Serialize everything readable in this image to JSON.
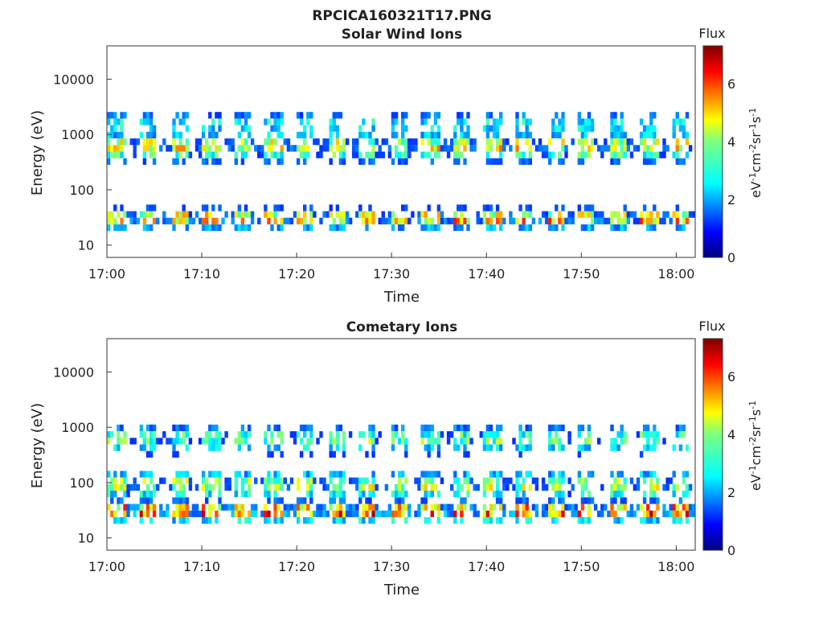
{
  "figure_title": "RPCICA160321T17.PNG",
  "chart_data": [
    {
      "type": "heatmap",
      "title": "Solar Wind Ions",
      "xlabel": "Time",
      "ylabel": "Energy (eV)",
      "x_tick_labels": [
        "17:00",
        "17:10",
        "17:20",
        "17:30",
        "17:40",
        "17:50",
        "18:00"
      ],
      "y_tick_labels": [
        "10",
        "100",
        "1000",
        "10000"
      ],
      "y_scale": "log",
      "ylim": [
        6,
        40000
      ],
      "xlim_minutes": [
        0,
        62
      ],
      "colorbar": {
        "title": "Flux",
        "label": "eV-1cm-2sr-1s-1",
        "ticks": [
          "0",
          "2",
          "4",
          "6"
        ],
        "range": [
          0,
          7.3
        ],
        "colormap": "jet"
      },
      "bands": [
        {
          "energy_center": 600,
          "flux_peak": 5.0,
          "description": "main solar wind band"
        },
        {
          "energy_center": 30,
          "flux_peak": 5.8,
          "description": "low-energy bursts"
        },
        {
          "energy_center": 1500,
          "flux_peak": 3.0,
          "description": "sparse upper band"
        }
      ]
    },
    {
      "type": "heatmap",
      "title": "Cometary Ions",
      "xlabel": "Time",
      "ylabel": "Energy (eV)",
      "x_tick_labels": [
        "17:00",
        "17:10",
        "17:20",
        "17:30",
        "17:40",
        "17:50",
        "18:00"
      ],
      "y_tick_labels": [
        "10",
        "100",
        "1000",
        "10000"
      ],
      "y_scale": "log",
      "ylim": [
        6,
        40000
      ],
      "xlim_minutes": [
        0,
        62
      ],
      "colorbar": {
        "title": "Flux",
        "label": "eV-1cm-2sr-1s-1",
        "ticks": [
          "0",
          "2",
          "4",
          "6"
        ],
        "range": [
          0,
          7.3
        ],
        "colormap": "jet"
      },
      "bands": [
        {
          "energy_center": 30,
          "flux_peak": 6.8,
          "description": "intense low-energy cometary band"
        },
        {
          "energy_center": 90,
          "flux_peak": 4.5,
          "description": "spread cometary ions"
        },
        {
          "energy_center": 600,
          "flux_peak": 3.8,
          "description": "sparse solar wind band"
        }
      ]
    }
  ]
}
